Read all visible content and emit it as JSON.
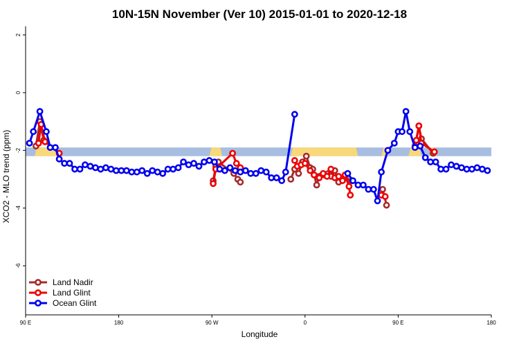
{
  "chart_data": {
    "type": "line",
    "title": "10N-15N November (Ver 10)   2015-01-01 to 2020-12-18",
    "xlabel": "Longitude",
    "ylabel": "XCO2 - MLO trend (ppm)",
    "xlim": [
      0,
      360
    ],
    "ylim": [
      -7.7,
      2.3
    ],
    "x_ticks": [
      {
        "x": 0,
        "label": "90 E"
      },
      {
        "x": 72,
        "label": "180"
      },
      {
        "x": 144,
        "label": "90 W"
      },
      {
        "x": 216,
        "label": "0"
      },
      {
        "x": 288,
        "label": "90 E"
      },
      {
        "x": 360,
        "label": "180"
      }
    ],
    "y_ticks": [
      {
        "y": 2,
        "label": "2"
      },
      {
        "y": 0,
        "label": "0"
      },
      {
        "y": -2,
        "label": "-2"
      },
      {
        "y": -4,
        "label": "-4"
      },
      {
        "y": -6,
        "label": "-6"
      }
    ],
    "reference_band": {
      "y_from": -2.2,
      "y_to": -1.9,
      "color": "#a7bee0",
      "land_color": "#f8d87a",
      "land_segments": [
        [
          7,
          26
        ],
        [
          142,
          152
        ],
        [
          205,
          257
        ],
        [
          275,
          280
        ],
        [
          296,
          306
        ],
        [
          312,
          317
        ]
      ]
    },
    "legend_position": "bottom-left",
    "series": [
      {
        "name": "Land Nadir",
        "color": "#a52a2a",
        "points": [
          [
            8,
            -1.85
          ],
          [
            11,
            -1.0
          ],
          [
            14,
            -1.65
          ],
          [
            145,
            -3.05
          ],
          [
            147,
            -2.55
          ],
          [
            149,
            -2.4
          ],
          [
            161,
            -2.8
          ],
          [
            164,
            -3.0
          ],
          [
            166,
            -3.1
          ],
          [
            205,
            -3.0
          ],
          [
            208,
            -2.65
          ],
          [
            211,
            -2.8
          ],
          [
            214,
            -2.4
          ],
          [
            217,
            -2.2
          ],
          [
            220,
            -2.6
          ],
          [
            222,
            -2.65
          ],
          [
            225,
            -3.2
          ],
          [
            227,
            -2.9
          ],
          [
            231,
            -2.85
          ],
          [
            234,
            -2.8
          ],
          [
            236,
            -2.9
          ],
          [
            239,
            -2.7
          ],
          [
            242,
            -3.1
          ],
          [
            245,
            -3.0
          ],
          [
            247,
            -2.95
          ],
          [
            252,
            -3.05
          ],
          [
            276,
            -3.35
          ],
          [
            279,
            -3.9
          ],
          [
            301,
            -1.85
          ],
          [
            304,
            -1.15
          ],
          [
            306,
            -1.6
          ],
          [
            315,
            -2.1
          ]
        ]
      },
      {
        "name": "Land Glint",
        "color": "#ee0000",
        "points": [
          [
            10,
            -1.75
          ],
          [
            12,
            -1.1
          ],
          [
            15,
            -1.7
          ],
          [
            26,
            -2.1
          ],
          [
            145,
            -3.15
          ],
          [
            147,
            -2.65
          ],
          [
            160,
            -2.1
          ],
          [
            163,
            -2.45
          ],
          [
            166,
            -2.6
          ],
          [
            208,
            -2.35
          ],
          [
            210,
            -2.55
          ],
          [
            213,
            -2.5
          ],
          [
            216,
            -2.45
          ],
          [
            220,
            -2.7
          ],
          [
            223,
            -2.85
          ],
          [
            227,
            -2.95
          ],
          [
            230,
            -2.8
          ],
          [
            233,
            -2.9
          ],
          [
            236,
            -2.65
          ],
          [
            239,
            -2.95
          ],
          [
            242,
            -2.9
          ],
          [
            245,
            -3.05
          ],
          [
            247,
            -2.85
          ],
          [
            250,
            -3.25
          ],
          [
            251,
            -3.55
          ],
          [
            275,
            -3.55
          ],
          [
            278,
            -3.6
          ],
          [
            302,
            -1.65
          ],
          [
            304,
            -1.15
          ],
          [
            306,
            -1.75
          ],
          [
            316,
            -2.05
          ]
        ]
      },
      {
        "name": "Ocean Glint",
        "color": "#0000ee",
        "points": [
          [
            3,
            -1.75
          ],
          [
            6,
            -1.35
          ],
          [
            11,
            -0.65
          ],
          [
            16,
            -1.35
          ],
          [
            19,
            -1.9
          ],
          [
            23,
            -1.9
          ],
          [
            26,
            -2.3
          ],
          [
            30,
            -2.45
          ],
          [
            34,
            -2.45
          ],
          [
            38,
            -2.65
          ],
          [
            42,
            -2.65
          ],
          [
            46,
            -2.5
          ],
          [
            50,
            -2.55
          ],
          [
            54,
            -2.6
          ],
          [
            58,
            -2.65
          ],
          [
            62,
            -2.6
          ],
          [
            66,
            -2.65
          ],
          [
            70,
            -2.7
          ],
          [
            74,
            -2.7
          ],
          [
            78,
            -2.7
          ],
          [
            82,
            -2.75
          ],
          [
            86,
            -2.75
          ],
          [
            90,
            -2.7
          ],
          [
            94,
            -2.8
          ],
          [
            98,
            -2.7
          ],
          [
            102,
            -2.75
          ],
          [
            106,
            -2.8
          ],
          [
            110,
            -2.65
          ],
          [
            114,
            -2.65
          ],
          [
            118,
            -2.6
          ],
          [
            122,
            -2.4
          ],
          [
            126,
            -2.5
          ],
          [
            130,
            -2.45
          ],
          [
            134,
            -2.55
          ],
          [
            138,
            -2.4
          ],
          [
            142,
            -2.35
          ],
          [
            146,
            -2.4
          ],
          [
            150,
            -2.65
          ],
          [
            154,
            -2.7
          ],
          [
            158,
            -2.6
          ],
          [
            162,
            -2.7
          ],
          [
            166,
            -2.75
          ],
          [
            170,
            -2.7
          ],
          [
            174,
            -2.8
          ],
          [
            178,
            -2.8
          ],
          [
            182,
            -2.7
          ],
          [
            186,
            -2.75
          ],
          [
            190,
            -2.95
          ],
          [
            194,
            -2.95
          ],
          [
            198,
            -3.05
          ],
          [
            201,
            -2.75
          ],
          [
            208,
            -0.75
          ],
          [
            249,
            -2.8
          ],
          [
            253,
            -3.05
          ],
          [
            257,
            -3.2
          ],
          [
            261,
            -3.2
          ],
          [
            265,
            -3.35
          ],
          [
            269,
            -3.35
          ],
          [
            272,
            -3.75
          ],
          [
            275,
            -2.75
          ],
          [
            280,
            -2.0
          ],
          [
            285,
            -1.75
          ],
          [
            288,
            -1.35
          ],
          [
            291,
            -1.35
          ],
          [
            294,
            -0.65
          ],
          [
            297,
            -1.35
          ],
          [
            301,
            -1.9
          ],
          [
            305,
            -1.85
          ],
          [
            309,
            -2.25
          ],
          [
            313,
            -2.4
          ],
          [
            317,
            -2.4
          ],
          [
            321,
            -2.65
          ],
          [
            325,
            -2.65
          ],
          [
            329,
            -2.5
          ],
          [
            333,
            -2.55
          ],
          [
            337,
            -2.6
          ],
          [
            341,
            -2.65
          ],
          [
            345,
            -2.65
          ],
          [
            349,
            -2.6
          ],
          [
            353,
            -2.65
          ],
          [
            357,
            -2.7
          ]
        ]
      }
    ]
  }
}
